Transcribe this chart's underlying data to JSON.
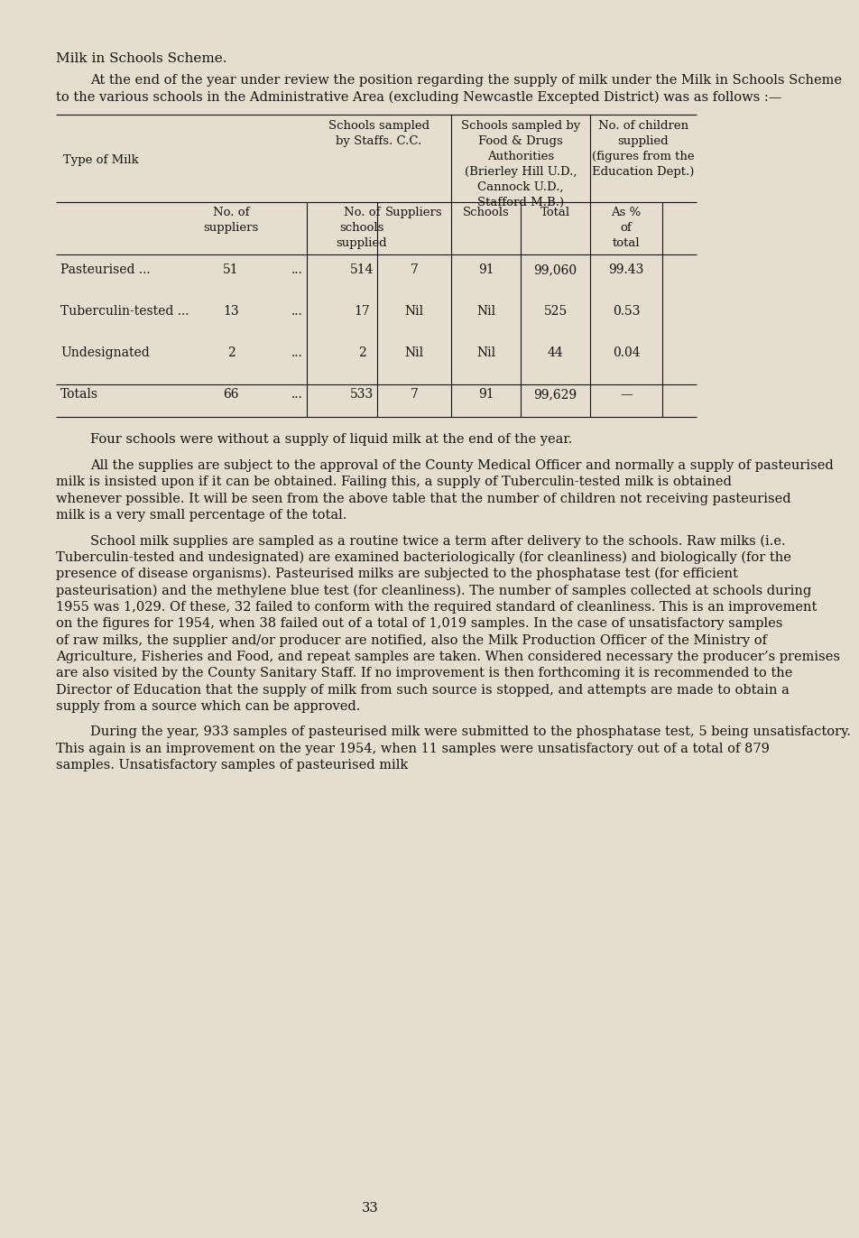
{
  "bg_color": "#e4ddd0",
  "text_color": "#1a1410",
  "page_number": "33",
  "title": "Milk in Schools Scheme.",
  "intro_text": "At the end of the year under review the position regarding the supply of milk under the Milk in Schools Scheme to the various schools in the Administrative Area (excluding Newcastle Excepted District) was as follows :—",
  "para1": "Four schools were without a supply of liquid milk at the end of the year.",
  "para2": "All the supplies are subject to the approval of the County Medical Officer and normally a supply of pasteurised milk is insisted upon if it can be obtained. Failing this, a supply of Tuberculin-tested milk is obtained whenever possible. It will be seen from the above table that the number of children not receiving pasteurised milk is a very small percentage of the total.",
  "para3": "School milk supplies are sampled as a routine twice a term after delivery to the schools. Raw milks (i.e. Tuberculin-tested and un­designated) are examined bacteriologically (for cleanliness) and biologically (for the presence of disease organisms). Pasteurised milks are subjected to the phosphatase test (for efficient pasteurisation) and the methylene blue test (for cleanliness). The number of samples collected at schools during 1955 was 1,029. Of these, 32 failed to conform with the required standard of cleanliness. This is an improve­ment on the figures for 1954, when 38 failed out of a total of 1,019 samples. In the case of unsatisfactory samples of raw milks, the supplier and/or producer are notified, also the Milk Production Officer of the Ministry of Agriculture, Fisheries and Food, and repeat samples are taken. When considered necessary the producer’s premises are also visited by the County Sanitary Staff. If no improvement is then forthcoming it is recommended to the Director of Education that the supply of milk from such source is stopped, and attempts are made to obtain a supply from a source which can be approved.",
  "para4": "During the year, 933 samples of pasteurised milk were submitted to the phosphatase test, 5 being unsatisfactory. This again is an improve­ment on the year 1954, when 11 samples were unsatisfactory out of a total of 879 samples. Unsatisfactory samples of pasteurised milk",
  "table_header1": [
    "Schools sampled\nby Staffs. C.C.",
    "Schools sampled by\nFood & Drugs\nAuthorities\n(Brierley Hill U.D.,\nCannock U.D.,\nStafford M.B.)",
    "No. of children\nsupplied\n(figures from the\nEducation Dept.)"
  ],
  "table_header2": [
    "No. of\nsuppliers",
    "No. of\nschools\nsupplied",
    "Suppliers",
    "Schools",
    "Total",
    "As %\nof\ntotal"
  ],
  "table_rows": [
    [
      "Pasteurised ...",
      "...",
      "51",
      "514",
      "7",
      "91",
      "99,060",
      "99.43"
    ],
    [
      "Tuberculin-tested ...",
      "...",
      "13",
      "17",
      "Nil",
      "Nil",
      "525",
      "0.53"
    ],
    [
      "Undesignated",
      "...",
      "2",
      "2",
      "Nil",
      "Nil",
      "44",
      "0.04"
    ],
    [
      "Totals",
      "...",
      "66",
      "533",
      "7",
      "91",
      "99,629",
      "—"
    ]
  ],
  "font_size_body": 10.5,
  "font_size_table": 9.8,
  "font_size_title": 11.0
}
